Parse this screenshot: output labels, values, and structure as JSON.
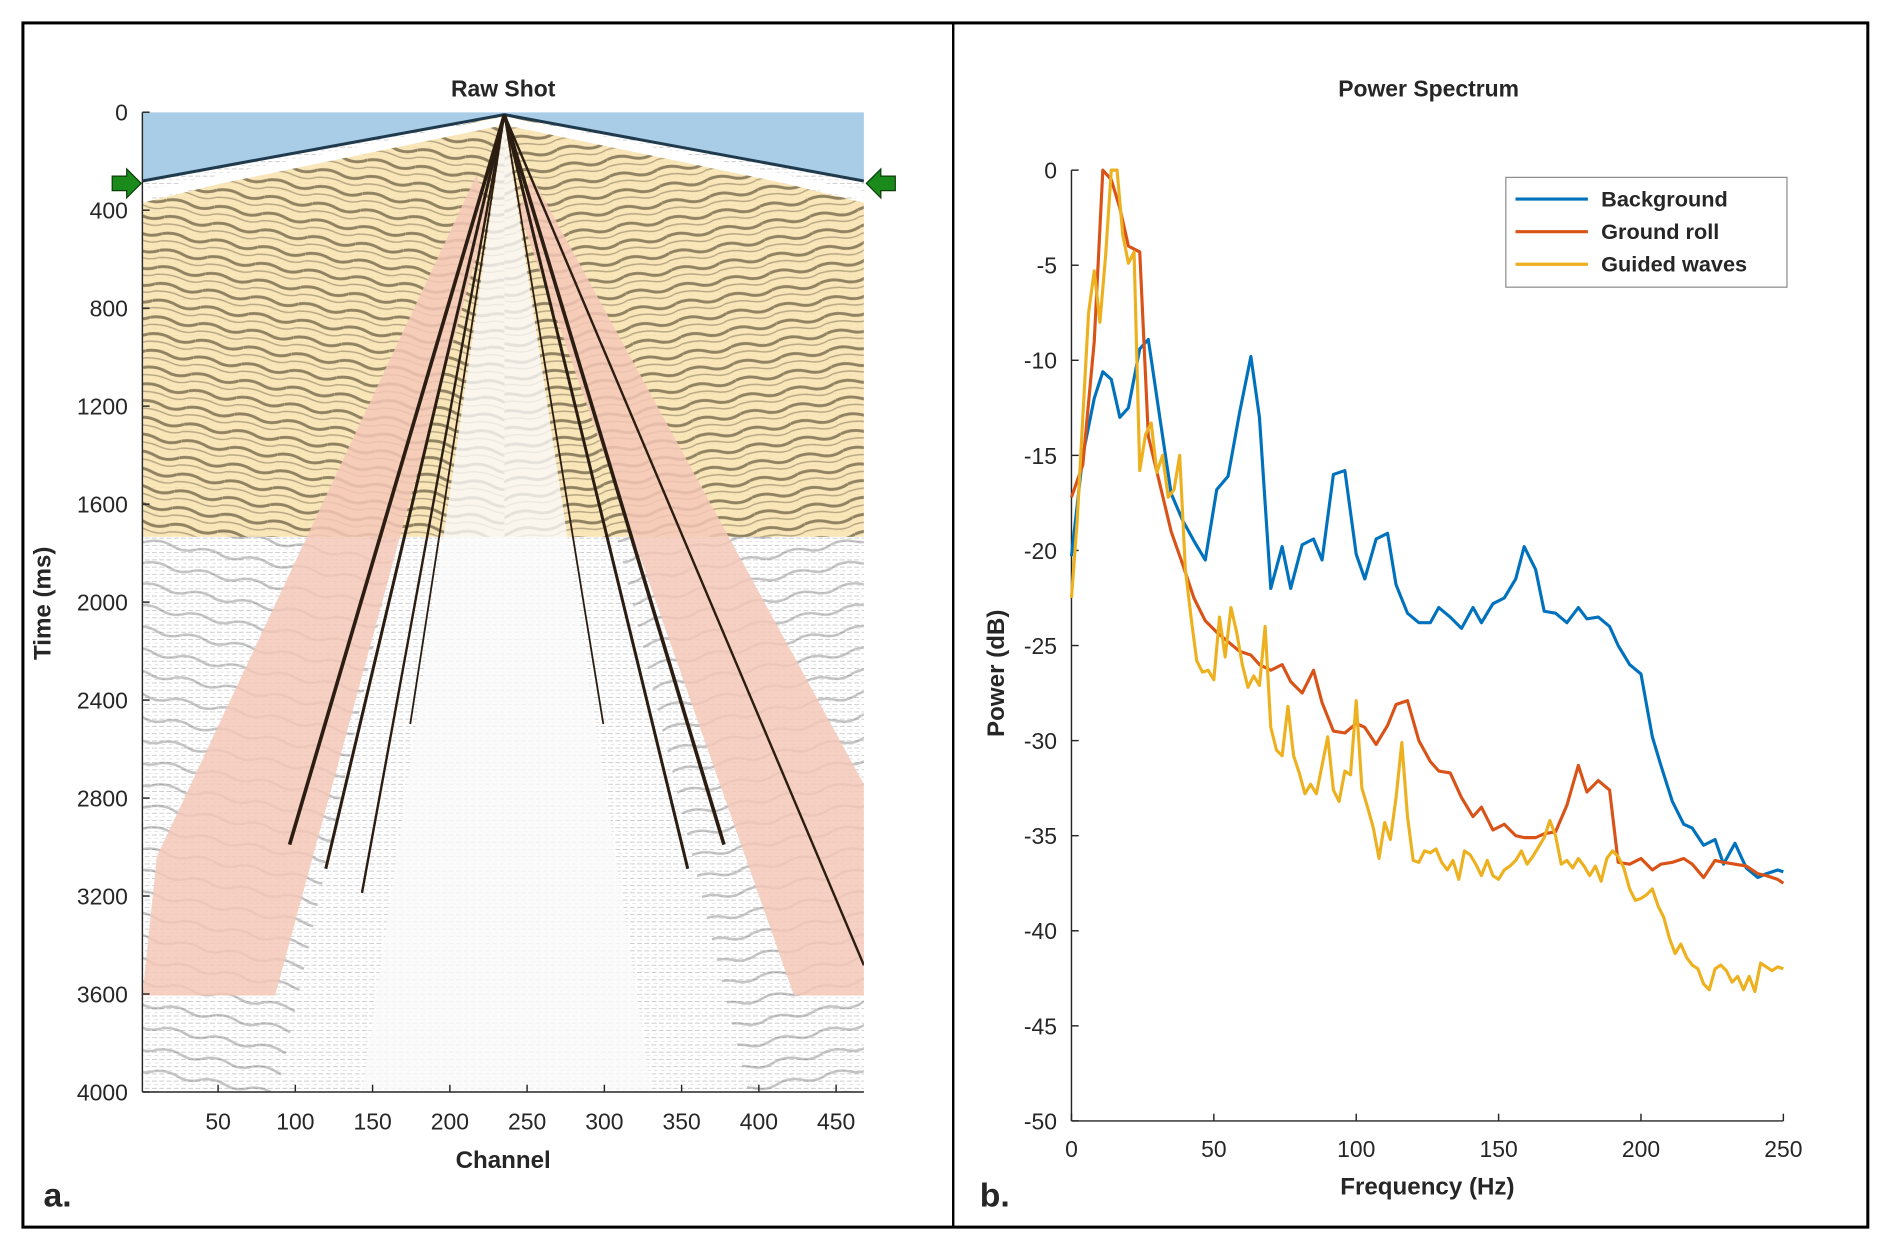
{
  "figure": {
    "panel_labels": [
      "a.",
      "b."
    ]
  },
  "chart_data": [
    {
      "type": "heatmap",
      "title": "Raw Shot",
      "xlabel": "Channel",
      "ylabel": "Time (ms)",
      "xlim": [
        1,
        468
      ],
      "ylim": [
        0,
        4000
      ],
      "y_reversed": true,
      "xticks": [
        50,
        100,
        150,
        200,
        250,
        300,
        350,
        400,
        450
      ],
      "yticks": [
        0,
        400,
        800,
        1200,
        1600,
        2000,
        2400,
        2800,
        3200,
        3600,
        4000
      ],
      "source_channel": 234,
      "annotations": [
        {
          "label": "background-region",
          "color": "#9dc3e6",
          "description": "direct arrival / pre-first-break zone"
        },
        {
          "label": "guided-waves-region",
          "color": "#f9e0a7",
          "description": "guided waves zone from ~300 to ~1750 ms"
        },
        {
          "label": "ground-roll-region",
          "color": "#f4c7b5",
          "description": "ground roll cone down to 3600 ms"
        },
        {
          "label": "first-break-arrow-left",
          "color": "#1a8a1a",
          "time_ms": 300
        },
        {
          "label": "first-break-arrow-right",
          "color": "#1a8a1a",
          "time_ms": 300
        }
      ]
    },
    {
      "type": "line",
      "title": "Power Spectrum",
      "xlabel": "Frequency (Hz)",
      "ylabel": "Power (dB)",
      "xlim": [
        0,
        250
      ],
      "ylim": [
        -50,
        0
      ],
      "xticks": [
        0,
        50,
        100,
        150,
        200,
        250
      ],
      "yticks": [
        0,
        -5,
        -10,
        -15,
        -20,
        -25,
        -30,
        -35,
        -40,
        -45,
        -50
      ],
      "legend": "top-right",
      "series": [
        {
          "name": "Background",
          "color": "#0072bd",
          "x": [
            0,
            4,
            8,
            11,
            14,
            17,
            20,
            24,
            27,
            31,
            35,
            39,
            43,
            47,
            51,
            55,
            59,
            63,
            66,
            70,
            74,
            77,
            81,
            85,
            88,
            92,
            96,
            100,
            103,
            107,
            111,
            114,
            118,
            122,
            126,
            129,
            133,
            137,
            141,
            144,
            148,
            152,
            156,
            159,
            163,
            166,
            170,
            174,
            178,
            181,
            185,
            189,
            192,
            196,
            200,
            204,
            207,
            211,
            215,
            218,
            222,
            226,
            229,
            233,
            237,
            241,
            244,
            248,
            250
          ],
          "y": [
            -20.3,
            -15,
            -12,
            -10.6,
            -11,
            -13,
            -12.5,
            -9.4,
            -8.9,
            -13,
            -17,
            -18.4,
            -19.5,
            -20.5,
            -16.8,
            -16.1,
            -12.8,
            -9.8,
            -13,
            -22,
            -19.8,
            -22,
            -19.7,
            -19.4,
            -20.5,
            -16,
            -15.8,
            -20.2,
            -21.5,
            -19.4,
            -19.1,
            -21.8,
            -23.3,
            -23.8,
            -23.8,
            -23,
            -23.5,
            -24.1,
            -23,
            -23.8,
            -22.8,
            -22.5,
            -21.5,
            -19.8,
            -21,
            -23.2,
            -23.3,
            -23.8,
            -23,
            -23.6,
            -23.5,
            -24,
            -25,
            -26,
            -26.5,
            -29.8,
            -31.3,
            -33.2,
            -34.4,
            -34.6,
            -35.5,
            -35.2,
            -36.5,
            -35.4,
            -36.7,
            -37.2,
            -37,
            -36.8,
            -36.9
          ]
        },
        {
          "name": "Ground roll",
          "color": "#d95319",
          "x": [
            0,
            4,
            8,
            11,
            14,
            17,
            20,
            24,
            27,
            31,
            35,
            39,
            43,
            47,
            51,
            55,
            59,
            63,
            66,
            70,
            74,
            77,
            81,
            85,
            88,
            92,
            96,
            100,
            103,
            107,
            111,
            114,
            118,
            122,
            126,
            129,
            133,
            137,
            141,
            144,
            148,
            152,
            156,
            159,
            163,
            166,
            170,
            174,
            178,
            181,
            185,
            189,
            192,
            196,
            200,
            204,
            207,
            211,
            215,
            218,
            222,
            226,
            229,
            233,
            237,
            241,
            244,
            248,
            250
          ],
          "y": [
            -17.2,
            -15.5,
            -9,
            0,
            -0.5,
            -2,
            -4,
            -4.3,
            -14,
            -16.5,
            -19,
            -20.7,
            -22.5,
            -23.7,
            -24.3,
            -24.8,
            -25.3,
            -25.5,
            -26,
            -26.3,
            -26,
            -26.9,
            -27.5,
            -26.3,
            -28,
            -29.5,
            -29.6,
            -29.1,
            -29.3,
            -30.2,
            -29.2,
            -28.1,
            -27.9,
            -30,
            -31.1,
            -31.6,
            -31.7,
            -33,
            -34,
            -33.5,
            -34.7,
            -34.4,
            -35,
            -35.1,
            -35.1,
            -34.9,
            -34.8,
            -33.4,
            -31.3,
            -32.7,
            -32.1,
            -32.6,
            -36.4,
            -36.5,
            -36.2,
            -36.8,
            -36.5,
            -36.4,
            -36.2,
            -36.5,
            -37.2,
            -36.3,
            -36.4,
            -36.5,
            -36.6,
            -37,
            -37.1,
            -37.3,
            -37.5
          ]
        },
        {
          "name": "Guided waves",
          "color": "#edb120",
          "x": [
            0,
            2,
            4,
            6,
            8,
            10,
            12,
            14,
            16,
            18,
            20,
            22,
            24,
            26,
            28,
            30,
            32,
            34,
            36,
            38,
            40,
            42,
            44,
            46,
            48,
            50,
            52,
            54,
            56,
            58,
            60,
            62,
            64,
            66,
            68,
            70,
            72,
            74,
            76,
            78,
            80,
            82,
            84,
            86,
            88,
            90,
            92,
            94,
            96,
            98,
            100,
            102,
            104,
            106,
            108,
            110,
            112,
            114,
            116,
            118,
            120,
            122,
            124,
            126,
            128,
            130,
            132,
            134,
            136,
            138,
            140,
            142,
            144,
            146,
            148,
            150,
            152,
            154,
            156,
            158,
            160,
            162,
            164,
            166,
            168,
            170,
            172,
            174,
            176,
            178,
            180,
            182,
            184,
            186,
            188,
            190,
            192,
            194,
            196,
            198,
            200,
            202,
            204,
            206,
            208,
            210,
            212,
            214,
            216,
            218,
            220,
            222,
            224,
            226,
            228,
            230,
            232,
            234,
            236,
            238,
            240,
            242,
            244,
            246,
            248,
            250
          ],
          "y": [
            -22.5,
            -18.5,
            -13,
            -7.5,
            -5.3,
            -8,
            -4.5,
            0,
            0,
            -3.4,
            -4.9,
            -4.3,
            -15.8,
            -13.9,
            -13.3,
            -15.9,
            -15,
            -17.2,
            -16.8,
            -15,
            -21,
            -23.5,
            -25.8,
            -26.4,
            -26.3,
            -26.8,
            -23.5,
            -25.6,
            -23,
            -24.3,
            -26,
            -27.2,
            -26.6,
            -27.1,
            -24,
            -29.3,
            -30.5,
            -30.8,
            -28.2,
            -30.8,
            -31.7,
            -32.8,
            -32.3,
            -32.8,
            -31.3,
            -29.8,
            -32.6,
            -33.2,
            -31.6,
            -31.8,
            -27.9,
            -32.5,
            -33.5,
            -34.6,
            -36.2,
            -34.3,
            -35.2,
            -33,
            -30.1,
            -34,
            -36.3,
            -36.4,
            -35.8,
            -35.9,
            -35.7,
            -36.4,
            -36.8,
            -36.3,
            -37.3,
            -35.8,
            -36,
            -36.5,
            -37.1,
            -36.3,
            -37.1,
            -37.3,
            -36.8,
            -36.6,
            -36.3,
            -35.8,
            -36.5,
            -36.1,
            -35.6,
            -35.1,
            -34.2,
            -35,
            -36.5,
            -36.3,
            -36.7,
            -36.2,
            -36.6,
            -37.1,
            -36.6,
            -37.4,
            -36.2,
            -35.8,
            -36.1,
            -36.7,
            -37.8,
            -38.4,
            -38.3,
            -38.1,
            -37.8,
            -38.7,
            -39.3,
            -40.4,
            -41.2,
            -40.7,
            -41.4,
            -41.8,
            -42,
            -42.8,
            -43.1,
            -42,
            -41.8,
            -42.1,
            -42.7,
            -42.4,
            -43.1,
            -42.4,
            -43.2,
            -41.7,
            -41.9,
            -42.1,
            -41.9,
            -42
          ]
        }
      ]
    }
  ]
}
